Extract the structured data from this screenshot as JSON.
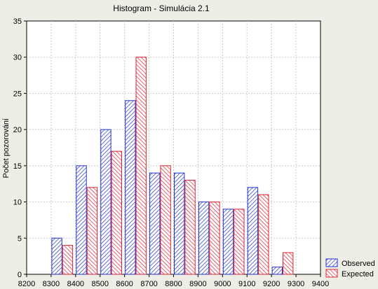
{
  "chart_data": {
    "type": "bar",
    "title": "Histogram - Simulácia 2.1",
    "xlabel": "",
    "ylabel": "Počet pozorovánί",
    "x_ticks": [
      8200,
      8300,
      8400,
      8500,
      8600,
      8700,
      8800,
      8900,
      9000,
      9100,
      9200,
      9300,
      9400
    ],
    "xlim": [
      8200,
      9400
    ],
    "y_ticks": [
      0,
      5,
      10,
      15,
      20,
      25,
      30,
      35
    ],
    "ylim": [
      0,
      35
    ],
    "bin_width": 100,
    "categories": [
      8300,
      8400,
      8500,
      8600,
      8700,
      8800,
      8900,
      9000,
      9100,
      9200
    ],
    "series": [
      {
        "name": "Observed",
        "color": "#2233cc",
        "values": [
          5,
          15,
          20,
          24,
          14,
          14,
          10,
          9,
          12,
          1
        ]
      },
      {
        "name": "Expected",
        "color": "#dd2233",
        "values": [
          4,
          12,
          17,
          30,
          15,
          13,
          10,
          9,
          11,
          3
        ]
      }
    ],
    "grid": true,
    "legend_position": "bottom-right",
    "colors": {
      "background": "#eeeee6",
      "plot_background": "#ffffff",
      "grid": "#c8c8c8"
    }
  }
}
